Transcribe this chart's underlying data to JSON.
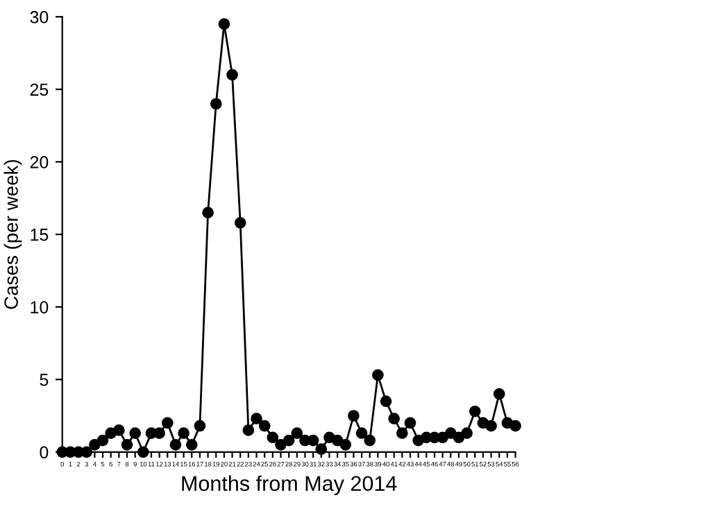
{
  "chart_data": {
    "type": "line",
    "xlabel": "Months from May 2014",
    "ylabel": "Cases (per week)",
    "x": [
      0,
      1,
      2,
      3,
      4,
      5,
      6,
      7,
      8,
      9,
      10,
      11,
      12,
      13,
      14,
      15,
      16,
      17,
      18,
      19,
      20,
      21,
      22,
      23,
      24,
      25,
      26,
      27,
      28,
      29,
      30,
      31,
      32,
      33,
      34,
      35,
      36,
      37,
      38,
      39,
      40,
      41,
      42,
      43,
      44,
      45,
      46,
      47,
      48,
      49,
      50,
      51,
      52,
      53,
      54,
      55,
      56
    ],
    "series": [
      {
        "color": "#000000",
        "values": [
          0,
          0,
          0,
          0,
          0.5,
          0.8,
          1.3,
          1.5,
          0.5,
          1.3,
          0,
          1.3,
          1.3,
          2,
          0.5,
          1.3,
          0.5,
          1.8,
          16.5,
          24,
          29.5,
          26,
          15.8,
          1.5,
          2.3,
          1.8,
          1,
          0.5,
          0.8,
          1.3,
          0.8,
          0.8,
          0.2,
          1,
          0.8,
          0.5,
          2.5,
          1.3,
          0.8,
          5.3,
          3.5,
          2.3,
          1.3,
          2,
          0.8,
          1,
          1,
          1,
          1.3,
          1,
          1.3,
          2.8,
          2,
          1.8,
          4,
          2,
          1.8
        ]
      }
    ],
    "xlim": [
      0,
      56
    ],
    "xticks": [
      0,
      1,
      2,
      3,
      4,
      5,
      6,
      7,
      8,
      9,
      10,
      11,
      12,
      13,
      14,
      15,
      16,
      17,
      18,
      19,
      20,
      21,
      22,
      23,
      24,
      25,
      26,
      27,
      28,
      29,
      30,
      31,
      32,
      33,
      34,
      35,
      36,
      37,
      38,
      39,
      40,
      41,
      42,
      43,
      44,
      45,
      46,
      47,
      48,
      49,
      50,
      51,
      52,
      53,
      54,
      55,
      56
    ],
    "ylim": [
      0,
      30
    ],
    "yticks": [
      0,
      5,
      10,
      15,
      20,
      25,
      30
    ],
    "marker": "circle",
    "line_style": "solid",
    "grid": false,
    "legend": false
  }
}
